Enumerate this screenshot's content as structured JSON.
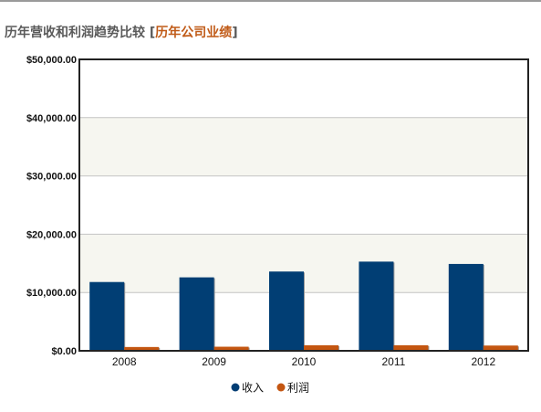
{
  "header": {
    "title": "历年营收和利润趋势比较",
    "bracket_open": "[",
    "link_text": "历年公司业绩",
    "bracket_close": "]"
  },
  "colors": {
    "revenue": "#013e74",
    "profit": "#c45611",
    "band": "#f6f6f0",
    "frame": "#222222",
    "accent_link": "#c05a17"
  },
  "chart_data": {
    "type": "bar",
    "categories": [
      "2008",
      "2009",
      "2010",
      "2011",
      "2012"
    ],
    "series": [
      {
        "name": "收入",
        "values": [
          11800,
          12600,
          13600,
          15300,
          14900
        ]
      },
      {
        "name": "利润",
        "values": [
          650,
          700,
          950,
          950,
          900
        ]
      }
    ],
    "ylim": [
      0,
      50000
    ],
    "yticks": [
      0,
      10000,
      20000,
      30000,
      40000,
      50000
    ],
    "ytick_labels": [
      "$0.00",
      "$10,000.00",
      "$20,000.00",
      "$30,000.00",
      "$40,000.00",
      "$50,000.00"
    ],
    "grid": true,
    "alternating_bands": true,
    "legend_position": "bottom-center",
    "title": "",
    "xlabel": "",
    "ylabel": ""
  }
}
